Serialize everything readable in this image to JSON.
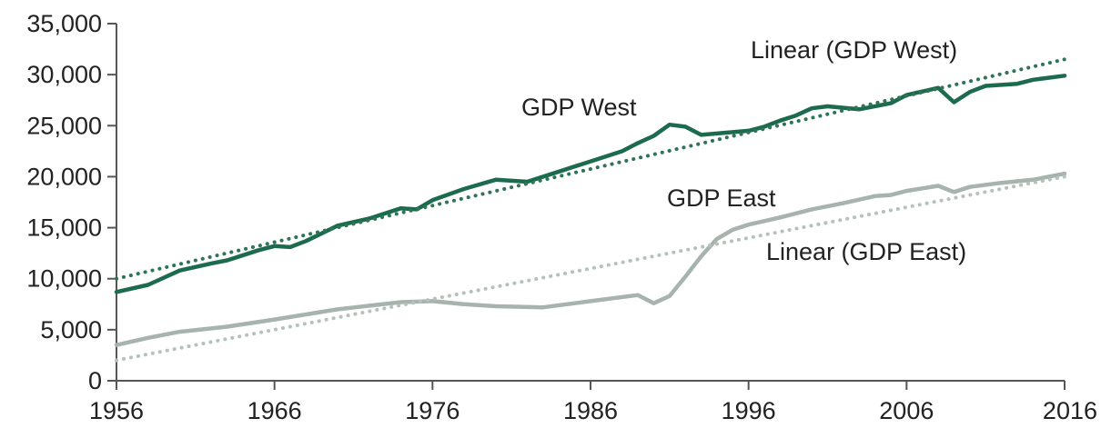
{
  "chart_data": {
    "type": "line",
    "title": "",
    "xlabel": "",
    "ylabel": "",
    "xlim": [
      1956,
      2016
    ],
    "ylim": [
      0,
      35000
    ],
    "grid": false,
    "legend": "none",
    "x_ticks": [
      1956,
      1966,
      1976,
      1986,
      1996,
      2006,
      2016
    ],
    "x_tick_labels": [
      "1956",
      "1966",
      "1976",
      "1986",
      "1996",
      "2006",
      "2016"
    ],
    "y_ticks": [
      0,
      5000,
      10000,
      15000,
      20000,
      25000,
      30000,
      35000
    ],
    "y_tick_labels": [
      "0",
      "5,000",
      "10,000",
      "15,000",
      "20,000",
      "25,000",
      "30,000",
      "35,000"
    ],
    "series": [
      {
        "name": "GDP West",
        "color": "#1d6b4f",
        "style": "solid",
        "points": [
          [
            1956,
            8700
          ],
          [
            1958,
            9400
          ],
          [
            1960,
            10800
          ],
          [
            1962,
            11500
          ],
          [
            1963,
            11800
          ],
          [
            1965,
            12800
          ],
          [
            1966,
            13200
          ],
          [
            1967,
            13100
          ],
          [
            1968,
            13700
          ],
          [
            1970,
            15200
          ],
          [
            1972,
            15900
          ],
          [
            1974,
            16900
          ],
          [
            1975,
            16800
          ],
          [
            1976,
            17700
          ],
          [
            1978,
            18800
          ],
          [
            1980,
            19700
          ],
          [
            1982,
            19500
          ],
          [
            1984,
            20500
          ],
          [
            1986,
            21500
          ],
          [
            1988,
            22500
          ],
          [
            1989,
            23300
          ],
          [
            1990,
            24000
          ],
          [
            1991,
            25100
          ],
          [
            1992,
            24900
          ],
          [
            1993,
            24100
          ],
          [
            1996,
            24500
          ],
          [
            1997,
            24900
          ],
          [
            1998,
            25500
          ],
          [
            1999,
            26000
          ],
          [
            2000,
            26700
          ],
          [
            2001,
            26900
          ],
          [
            2003,
            26600
          ],
          [
            2005,
            27200
          ],
          [
            2006,
            28000
          ],
          [
            2008,
            28700
          ],
          [
            2009,
            27300
          ],
          [
            2010,
            28300
          ],
          [
            2011,
            28900
          ],
          [
            2013,
            29100
          ],
          [
            2014,
            29500
          ],
          [
            2016,
            29900
          ]
        ]
      },
      {
        "name": "GDP East",
        "color": "#a6b4ad",
        "style": "solid",
        "points": [
          [
            1956,
            3500
          ],
          [
            1958,
            4200
          ],
          [
            1960,
            4800
          ],
          [
            1963,
            5300
          ],
          [
            1966,
            6000
          ],
          [
            1970,
            7000
          ],
          [
            1974,
            7700
          ],
          [
            1976,
            7800
          ],
          [
            1978,
            7500
          ],
          [
            1980,
            7300
          ],
          [
            1983,
            7200
          ],
          [
            1986,
            7800
          ],
          [
            1989,
            8400
          ],
          [
            1990,
            7600
          ],
          [
            1991,
            8300
          ],
          [
            1992,
            10200
          ],
          [
            1993,
            12200
          ],
          [
            1994,
            13900
          ],
          [
            1995,
            14800
          ],
          [
            1996,
            15300
          ],
          [
            1998,
            16000
          ],
          [
            2000,
            16800
          ],
          [
            2002,
            17400
          ],
          [
            2004,
            18100
          ],
          [
            2005,
            18200
          ],
          [
            2006,
            18600
          ],
          [
            2008,
            19100
          ],
          [
            2009,
            18500
          ],
          [
            2010,
            19000
          ],
          [
            2012,
            19400
          ],
          [
            2014,
            19700
          ],
          [
            2016,
            20300
          ]
        ]
      },
      {
        "name": "Linear (GDP West)",
        "color": "#2e7456",
        "style": "dotted",
        "points": [
          [
            1956,
            10000
          ],
          [
            2016,
            31500
          ]
        ]
      },
      {
        "name": "Linear (GDP East)",
        "color": "#b5c1bb",
        "style": "dotted",
        "points": [
          [
            1956,
            2000
          ],
          [
            2016,
            20000
          ]
        ]
      }
    ],
    "annotations": [
      {
        "text": "Linear (GDP West)",
        "series": "Linear (GDP West)"
      },
      {
        "text": "GDP West",
        "series": "GDP West"
      },
      {
        "text": "GDP East",
        "series": "GDP East"
      },
      {
        "text": "Linear (GDP East)",
        "series": "Linear (GDP East)"
      }
    ],
    "axis_color": "#555555"
  }
}
